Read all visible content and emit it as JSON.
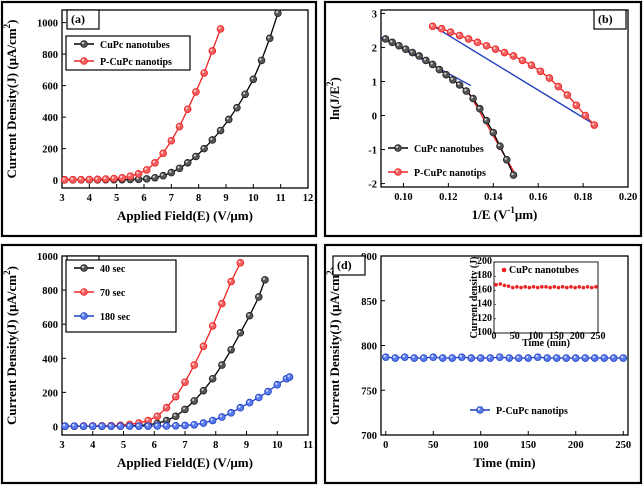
{
  "chart_data": [
    {
      "type": "line",
      "panel_label": "(a)",
      "xlabel": "Applied Field(E) (V/μm)",
      "ylabel": "Current Density(J) (μA/cm",
      "ylabel_sup": "2",
      "ylabel_close": ")",
      "xlim": [
        3,
        12
      ],
      "ylim": [
        -50,
        1080
      ],
      "xticks": [
        3,
        4,
        5,
        6,
        7,
        8,
        9,
        10,
        11,
        12
      ],
      "yticks": [
        0,
        200,
        400,
        600,
        800,
        1000
      ],
      "tick_labels_x": [
        "3",
        "4",
        "5",
        "6",
        "7",
        "8",
        "9",
        "10",
        "11",
        "12"
      ],
      "tick_labels_y": [
        "0",
        "200",
        "400",
        "600",
        "800",
        "1000"
      ],
      "legend_position": "top-left",
      "series": [
        {
          "name": "CuPc nanotubes",
          "color": "#000000",
          "marker_fill": "#555555",
          "x": [
            3.1,
            3.4,
            3.7,
            4.0,
            4.3,
            4.6,
            4.9,
            5.2,
            5.5,
            5.8,
            6.1,
            6.4,
            6.7,
            7.0,
            7.3,
            7.6,
            7.9,
            8.2,
            8.5,
            8.8,
            9.1,
            9.4,
            9.7,
            10.0,
            10.3,
            10.6,
            10.9
          ],
          "y": [
            2,
            2,
            2,
            2,
            2,
            3,
            3,
            3,
            4,
            5,
            8,
            15,
            28,
            48,
            75,
            110,
            150,
            200,
            255,
            315,
            385,
            460,
            545,
            640,
            760,
            900,
            1060
          ]
        },
        {
          "name": "P-CuPc nanotips",
          "color": "#ee2222",
          "marker_fill": "#f06060",
          "x": [
            3.1,
            3.4,
            3.7,
            4.0,
            4.3,
            4.6,
            4.9,
            5.2,
            5.5,
            5.8,
            6.1,
            6.4,
            6.7,
            7.0,
            7.3,
            7.6,
            7.9,
            8.2,
            8.5,
            8.8
          ],
          "y": [
            2,
            3,
            3,
            4,
            5,
            7,
            10,
            15,
            25,
            40,
            65,
            110,
            170,
            250,
            340,
            450,
            560,
            680,
            820,
            960
          ]
        }
      ]
    },
    {
      "type": "line",
      "panel_label": "(b)",
      "xlabel": "1/E (V",
      "xlabel_sup": "-1",
      "xlabel_tail": "μm)",
      "ylabel": "ln(J/E",
      "ylabel_sup": "2",
      "ylabel_close": ")",
      "xlim": [
        0.09,
        0.2
      ],
      "ylim": [
        -2.1,
        3.1
      ],
      "xticks": [
        0.1,
        0.12,
        0.14,
        0.16,
        0.18,
        0.2
      ],
      "yticks": [
        -2,
        -1,
        0,
        1,
        2,
        3
      ],
      "tick_labels_x": [
        "0.10",
        "0.12",
        "0.14",
        "0.16",
        "0.18",
        "0.20"
      ],
      "tick_labels_y": [
        "-2",
        "-1",
        "0",
        "1",
        "2",
        "3"
      ],
      "legend_position": "bottom-left",
      "series": [
        {
          "name": "CuPc  nanotubes",
          "color": "#000000",
          "marker_fill": "#555555",
          "x": [
            0.092,
            0.095,
            0.098,
            0.101,
            0.104,
            0.107,
            0.11,
            0.113,
            0.116,
            0.119,
            0.122,
            0.125,
            0.128,
            0.131,
            0.134,
            0.137,
            0.14,
            0.143,
            0.146,
            0.149
          ],
          "y": [
            2.25,
            2.15,
            2.05,
            1.95,
            1.85,
            1.75,
            1.62,
            1.5,
            1.35,
            1.2,
            1.05,
            0.9,
            0.72,
            0.5,
            0.2,
            -0.15,
            -0.5,
            -0.9,
            -1.3,
            -1.75
          ]
        },
        {
          "name": "P-CuPc nanotips",
          "color": "#ee2222",
          "marker_fill": "#f06060",
          "x": [
            0.113,
            0.117,
            0.121,
            0.125,
            0.129,
            0.133,
            0.137,
            0.141,
            0.145,
            0.149,
            0.153,
            0.157,
            0.161,
            0.165,
            0.169,
            0.173,
            0.177,
            0.181,
            0.185
          ],
          "y": [
            2.62,
            2.55,
            2.45,
            2.35,
            2.25,
            2.15,
            2.05,
            1.95,
            1.85,
            1.75,
            1.62,
            1.48,
            1.3,
            1.1,
            0.85,
            0.6,
            0.3,
            0.0,
            -0.28
          ]
        }
      ],
      "fit_lines": [
        {
          "color": "#1f3fbf",
          "x": [
            0.09,
            0.13
          ],
          "y": [
            2.3,
            0.88
          ]
        },
        {
          "color": "#ee2222",
          "x": [
            0.128,
            0.15
          ],
          "y": [
            0.8,
            -1.75
          ]
        },
        {
          "color": "#1f3fbf",
          "x": [
            0.112,
            0.186
          ],
          "y": [
            2.68,
            -0.3
          ]
        }
      ]
    },
    {
      "type": "line",
      "panel_label": "(c)",
      "xlabel": "Applied Field(E) (V/μm)",
      "ylabel": "Current Density(J) (μA/cm",
      "ylabel_sup": "2",
      "ylabel_close": ")",
      "xlim": [
        3,
        11
      ],
      "ylim": [
        -50,
        1000
      ],
      "xticks": [
        3,
        4,
        5,
        6,
        7,
        8,
        9,
        10,
        11
      ],
      "yticks": [
        0,
        200,
        400,
        600,
        800,
        1000
      ],
      "tick_labels_x": [
        "3",
        "4",
        "5",
        "6",
        "7",
        "8",
        "9",
        "10",
        "11"
      ],
      "tick_labels_y": [
        "0",
        "200",
        "400",
        "600",
        "800",
        "1000"
      ],
      "legend_position": "top-left",
      "series": [
        {
          "name": "40 sec",
          "color": "#000000",
          "marker_fill": "#555555",
          "x": [
            3.1,
            3.4,
            3.7,
            4.0,
            4.3,
            4.6,
            4.9,
            5.2,
            5.5,
            5.8,
            6.1,
            6.4,
            6.7,
            7.0,
            7.3,
            7.6,
            7.9,
            8.2,
            8.5,
            8.8,
            9.1,
            9.4,
            9.6
          ],
          "y": [
            2,
            2,
            2,
            2,
            2,
            3,
            3,
            4,
            6,
            10,
            18,
            35,
            60,
            100,
            150,
            210,
            280,
            360,
            450,
            550,
            650,
            760,
            860
          ]
        },
        {
          "name": "70 sec",
          "color": "#ee2222",
          "marker_fill": "#f06060",
          "x": [
            3.1,
            3.4,
            3.7,
            4.0,
            4.3,
            4.6,
            4.9,
            5.2,
            5.5,
            5.8,
            6.1,
            6.4,
            6.7,
            7.0,
            7.3,
            7.6,
            7.9,
            8.2,
            8.5,
            8.8
          ],
          "y": [
            2,
            2,
            3,
            3,
            4,
            5,
            7,
            12,
            20,
            35,
            60,
            110,
            175,
            260,
            360,
            470,
            590,
            720,
            850,
            960
          ]
        },
        {
          "name": "180 sec",
          "color": "#1f3fbf",
          "marker_fill": "#5a7bf0",
          "x": [
            3.1,
            3.4,
            3.7,
            4.0,
            4.3,
            4.6,
            4.9,
            5.2,
            5.5,
            5.8,
            6.1,
            6.4,
            6.7,
            7.0,
            7.3,
            7.6,
            7.9,
            8.2,
            8.5,
            8.8,
            9.1,
            9.4,
            9.7,
            10.0,
            10.3,
            10.4
          ],
          "y": [
            2,
            2,
            2,
            2,
            2,
            2,
            2,
            2,
            2,
            2,
            3,
            3,
            4,
            6,
            10,
            20,
            35,
            55,
            80,
            110,
            140,
            170,
            205,
            245,
            280,
            290
          ]
        }
      ]
    },
    {
      "type": "line",
      "panel_label": "(d)",
      "xlabel": "Time (min)",
      "ylabel": "Current Density(J) (μA/cm",
      "ylabel_sup": "2",
      "ylabel_close": ")",
      "xlim": [
        -5,
        255
      ],
      "ylim": [
        700,
        900
      ],
      "xticks": [
        0,
        50,
        100,
        150,
        200,
        250
      ],
      "yticks": [
        700,
        750,
        800,
        850,
        900
      ],
      "tick_labels_x": [
        "0",
        "50",
        "100",
        "150",
        "200",
        "250"
      ],
      "tick_labels_y": [
        "700",
        "750",
        "800",
        "850",
        "900"
      ],
      "legend_position": "bottom-right",
      "series": [
        {
          "name": "P-CuPc nanotips",
          "color": "#1f3fbf",
          "marker_fill": "#5a7bf0",
          "x": [
            0,
            10,
            20,
            30,
            40,
            50,
            60,
            70,
            80,
            90,
            100,
            110,
            120,
            130,
            140,
            150,
            160,
            170,
            180,
            190,
            200,
            210,
            220,
            230,
            240,
            250
          ],
          "y": [
            787,
            786,
            787,
            786,
            786,
            787,
            786,
            786,
            787,
            786,
            786,
            786,
            787,
            786,
            786,
            786,
            787,
            786,
            786,
            786,
            786,
            786,
            786,
            786,
            786,
            786
          ]
        }
      ],
      "inset": {
        "type": "scatter",
        "xlabel": "Time (min)",
        "ylabel": "Current density (J)",
        "xlim": [
          0,
          250
        ],
        "ylim": [
          100,
          200
        ],
        "xticks": [
          0,
          50,
          100,
          150,
          200,
          250
        ],
        "yticks": [
          100,
          120,
          140,
          160,
          180,
          200
        ],
        "tick_labels_x": [
          "0",
          "50",
          "100",
          "150",
          "200",
          "250"
        ],
        "tick_labels_y": [
          "100",
          "120",
          "140",
          "160",
          "180",
          "200"
        ],
        "series": [
          {
            "name": "CuPc nanotubes",
            "color": "#ee2222",
            "x": [
              5,
              15,
              25,
              35,
              45,
              55,
              65,
              75,
              85,
              95,
              105,
              115,
              125,
              135,
              145,
              155,
              165,
              175,
              185,
              195,
              205,
              215,
              225,
              235,
              245
            ],
            "y": [
              168,
              169,
              167,
              166,
              164,
              165,
              164,
              165,
              164,
              165,
              164,
              165,
              165,
              164,
              165,
              164,
              165,
              164,
              165,
              164,
              165,
              164,
              165,
              164,
              165
            ]
          }
        ]
      }
    }
  ]
}
